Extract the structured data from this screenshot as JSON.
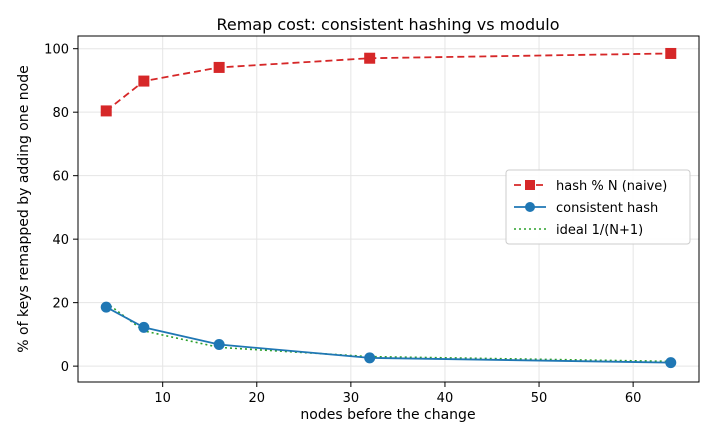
{
  "chart_data": {
    "type": "line",
    "title": "Remap cost: consistent hashing vs modulo",
    "xlabel": "nodes before the change",
    "ylabel": "% of keys remapped by adding one node",
    "xlim": [
      1,
      67
    ],
    "ylim": [
      -5,
      104
    ],
    "xticks": [
      10,
      20,
      30,
      40,
      50,
      60
    ],
    "yticks": [
      0,
      20,
      40,
      60,
      80,
      100
    ],
    "grid": true,
    "legend_position": "center-right",
    "x": [
      4,
      8,
      16,
      32,
      64
    ],
    "series": [
      {
        "name": "hash % N (naive)",
        "values": [
          80.4,
          89.8,
          94.1,
          97.0,
          98.5
        ],
        "color": "#d62728",
        "style": "dashed",
        "marker": "square"
      },
      {
        "name": "consistent hash",
        "values": [
          18.6,
          12.2,
          6.8,
          2.6,
          1.1
        ],
        "color": "#1f77b4",
        "style": "solid",
        "marker": "circle"
      },
      {
        "name": "ideal 1/(N+1)",
        "values": [
          20.0,
          11.1,
          5.9,
          3.0,
          1.5
        ],
        "color": "#2ca02c",
        "style": "dotted",
        "marker": "none"
      }
    ]
  }
}
